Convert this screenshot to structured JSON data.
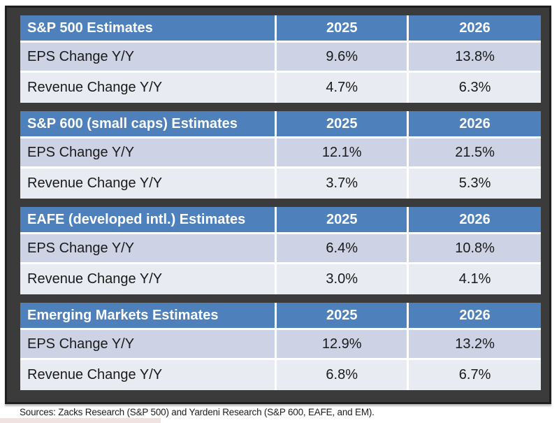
{
  "colors": {
    "header_blue": "#4e80bc",
    "row_band_dark": "#cdd3e5",
    "row_band_light": "#e9ebf3",
    "frame_dark": "#3b3b3b",
    "frame_outline": "#1f1f1f",
    "header_text": "#ffffff",
    "body_text": "#1a1a1a"
  },
  "tables": [
    {
      "title": "S&P 500 Estimates",
      "columns": [
        "2025",
        "2026"
      ],
      "rows": [
        {
          "label": "EPS Change Y/Y",
          "values": [
            "9.6%",
            "13.8%"
          ]
        },
        {
          "label": "Revenue Change Y/Y",
          "values": [
            "4.7%",
            "6.3%"
          ]
        }
      ]
    },
    {
      "title": "S&P 600 (small caps) Estimates",
      "columns": [
        "2025",
        "2026"
      ],
      "rows": [
        {
          "label": "EPS Change Y/Y",
          "values": [
            "12.1%",
            "21.5%"
          ]
        },
        {
          "label": "Revenue Change Y/Y",
          "values": [
            "3.7%",
            "5.3%"
          ]
        }
      ]
    },
    {
      "title": "EAFE (developed intl.) Estimates",
      "columns": [
        "2025",
        "2026"
      ],
      "rows": [
        {
          "label": "EPS Change Y/Y",
          "values": [
            "6.4%",
            "10.8%"
          ]
        },
        {
          "label": "Revenue Change Y/Y",
          "values": [
            "3.0%",
            "4.1%"
          ]
        }
      ]
    },
    {
      "title": "Emerging Markets Estimates",
      "columns": [
        "2025",
        "2026"
      ],
      "rows": [
        {
          "label": "EPS Change Y/Y",
          "values": [
            "12.9%",
            "13.2%"
          ]
        },
        {
          "label": "Revenue Change Y/Y",
          "values": [
            "6.8%",
            "6.7%"
          ]
        }
      ]
    }
  ],
  "footer": {
    "sources": "Sources: Zacks Research (S&P 500) and Yardeni Research (S&P 600, EAFE, and EM)."
  },
  "chart_data": [
    {
      "type": "table",
      "title": "S&P 500 Estimates",
      "columns": [
        "",
        "2025",
        "2026"
      ],
      "rows": [
        [
          "EPS Change Y/Y",
          "9.6%",
          "13.8%"
        ],
        [
          "Revenue Change Y/Y",
          "4.7%",
          "6.3%"
        ]
      ]
    },
    {
      "type": "table",
      "title": "S&P 600 (small caps) Estimates",
      "columns": [
        "",
        "2025",
        "2026"
      ],
      "rows": [
        [
          "EPS Change Y/Y",
          "12.1%",
          "21.5%"
        ],
        [
          "Revenue Change Y/Y",
          "3.7%",
          "5.3%"
        ]
      ]
    },
    {
      "type": "table",
      "title": "EAFE (developed intl.) Estimates",
      "columns": [
        "",
        "2025",
        "2026"
      ],
      "rows": [
        [
          "EPS Change Y/Y",
          "6.4%",
          "10.8%"
        ],
        [
          "Revenue Change Y/Y",
          "3.0%",
          "4.1%"
        ]
      ]
    },
    {
      "type": "table",
      "title": "Emerging Markets Estimates",
      "columns": [
        "",
        "2025",
        "2026"
      ],
      "rows": [
        [
          "EPS Change Y/Y",
          "12.9%",
          "13.2%"
        ],
        [
          "Revenue Change Y/Y",
          "6.8%",
          "6.7%"
        ]
      ]
    }
  ]
}
